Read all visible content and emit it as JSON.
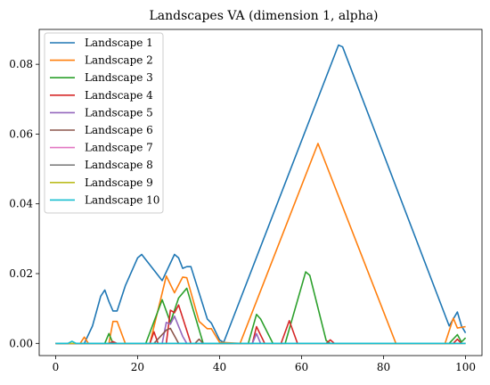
{
  "chart_data": {
    "type": "line",
    "title": "Landscapes VA (dimension 1, alpha)",
    "xlabel": "",
    "ylabel": "",
    "xlim": [
      -4,
      104
    ],
    "ylim": [
      -0.0035,
      0.09
    ],
    "xticks": [
      0,
      20,
      40,
      60,
      80,
      100
    ],
    "yticks": [
      0.0,
      0.02,
      0.04,
      0.06,
      0.08
    ],
    "ytick_labels": [
      "0.00",
      "0.02",
      "0.04",
      "0.06",
      "0.08"
    ],
    "xtick_labels": [
      "0",
      "20",
      "40",
      "60",
      "80",
      "100"
    ],
    "legend_position": "top-left",
    "grid": false,
    "series": [
      {
        "name": "Landscape 1",
        "color": "#1f77b4",
        "points": [
          [
            0,
            0
          ],
          [
            7,
            0
          ],
          [
            9,
            0.005
          ],
          [
            11,
            0.0135
          ],
          [
            12,
            0.0153
          ],
          [
            13,
            0.012
          ],
          [
            14,
            0.0093
          ],
          [
            15,
            0.0093
          ],
          [
            17,
            0.0165
          ],
          [
            20,
            0.0245
          ],
          [
            21,
            0.0255
          ],
          [
            26,
            0.018
          ],
          [
            29,
            0.0255
          ],
          [
            30,
            0.0245
          ],
          [
            31,
            0.0215
          ],
          [
            32,
            0.022
          ],
          [
            33,
            0.022
          ],
          [
            37,
            0.007
          ],
          [
            38,
            0.0058
          ],
          [
            40,
            0.001
          ],
          [
            41,
            0.0003
          ],
          [
            69,
            0.0855
          ],
          [
            70,
            0.085
          ],
          [
            96,
            0.005
          ],
          [
            98,
            0.009
          ],
          [
            99,
            0.005
          ],
          [
            100,
            0.003
          ]
        ]
      },
      {
        "name": "Landscape 2",
        "color": "#ff7f0e",
        "points": [
          [
            0,
            0
          ],
          [
            6,
            0
          ],
          [
            7,
            0.0018
          ],
          [
            8,
            0
          ],
          [
            13,
            0
          ],
          [
            14,
            0.0063
          ],
          [
            15,
            0.0063
          ],
          [
            17,
            0
          ],
          [
            23,
            0
          ],
          [
            27,
            0.0193
          ],
          [
            29,
            0.0145
          ],
          [
            31,
            0.019
          ],
          [
            32,
            0.0188
          ],
          [
            35,
            0.0063
          ],
          [
            37,
            0.0042
          ],
          [
            38,
            0.0042
          ],
          [
            40,
            0.0003
          ],
          [
            45,
            0
          ],
          [
            64,
            0.0573
          ],
          [
            83,
            0
          ],
          [
            95,
            0
          ],
          [
            97,
            0.0072
          ],
          [
            98,
            0.0044
          ],
          [
            100,
            0.0048
          ]
        ]
      },
      {
        "name": "Landscape 3",
        "color": "#2ca02c",
        "points": [
          [
            0,
            0
          ],
          [
            12,
            0
          ],
          [
            13,
            0.0028
          ],
          [
            14,
            0
          ],
          [
            22,
            0
          ],
          [
            26,
            0.0125
          ],
          [
            28,
            0.006
          ],
          [
            30,
            0.013
          ],
          [
            32,
            0.0158
          ],
          [
            36,
            0
          ],
          [
            47,
            0
          ],
          [
            49,
            0.0083
          ],
          [
            50,
            0.007
          ],
          [
            53,
            0
          ],
          [
            56,
            0
          ],
          [
            61,
            0.0205
          ],
          [
            62,
            0.0195
          ],
          [
            66,
            0.0008
          ],
          [
            67,
            0
          ],
          [
            96,
            0
          ],
          [
            98,
            0.0025
          ],
          [
            99,
            0.0004
          ],
          [
            100,
            0.0016
          ]
        ]
      },
      {
        "name": "Landscape 4",
        "color": "#d62728",
        "points": [
          [
            0,
            0
          ],
          [
            13,
            0
          ],
          [
            14,
            0.0005
          ],
          [
            15,
            0
          ],
          [
            23,
            0
          ],
          [
            24,
            0.0033
          ],
          [
            25,
            0
          ],
          [
            27,
            0
          ],
          [
            28,
            0.0095
          ],
          [
            29,
            0.0088
          ],
          [
            30,
            0.011
          ],
          [
            33,
            0
          ],
          [
            48,
            0
          ],
          [
            49,
            0.0048
          ],
          [
            51,
            0
          ],
          [
            55,
            0
          ],
          [
            57,
            0.0065
          ],
          [
            59,
            0
          ],
          [
            66,
            0
          ],
          [
            67,
            0.001
          ],
          [
            68,
            0
          ],
          [
            97,
            0
          ],
          [
            98,
            0.0012
          ],
          [
            99,
            0
          ]
        ]
      },
      {
        "name": "Landscape 5",
        "color": "#9467bd",
        "points": [
          [
            0,
            0
          ],
          [
            26,
            0
          ],
          [
            27,
            0.006
          ],
          [
            28,
            0.0055
          ],
          [
            29,
            0.0078
          ],
          [
            31,
            0.002
          ],
          [
            32,
            0
          ],
          [
            48,
            0
          ],
          [
            49,
            0.0028
          ],
          [
            50,
            0
          ]
        ]
      },
      {
        "name": "Landscape 6",
        "color": "#8c564b",
        "points": [
          [
            0,
            0
          ],
          [
            24,
            0
          ],
          [
            27,
            0.0038
          ],
          [
            28,
            0.0043
          ],
          [
            30,
            0
          ],
          [
            34,
            0
          ],
          [
            35,
            0.0012
          ],
          [
            36,
            0
          ]
        ]
      },
      {
        "name": "Landscape 7",
        "color": "#e377c2",
        "points": [
          [
            0,
            0
          ],
          [
            100,
            0
          ]
        ]
      },
      {
        "name": "Landscape 8",
        "color": "#7f7f7f",
        "points": [
          [
            0,
            0
          ],
          [
            100,
            0
          ]
        ]
      },
      {
        "name": "Landscape 9",
        "color": "#bcbd22",
        "points": [
          [
            0,
            0
          ],
          [
            100,
            0
          ]
        ]
      },
      {
        "name": "Landscape 10",
        "color": "#17becf",
        "points": [
          [
            0,
            0
          ],
          [
            3,
            0
          ],
          [
            4,
            0.0006
          ],
          [
            5,
            0
          ],
          [
            100,
            0
          ]
        ]
      }
    ]
  }
}
